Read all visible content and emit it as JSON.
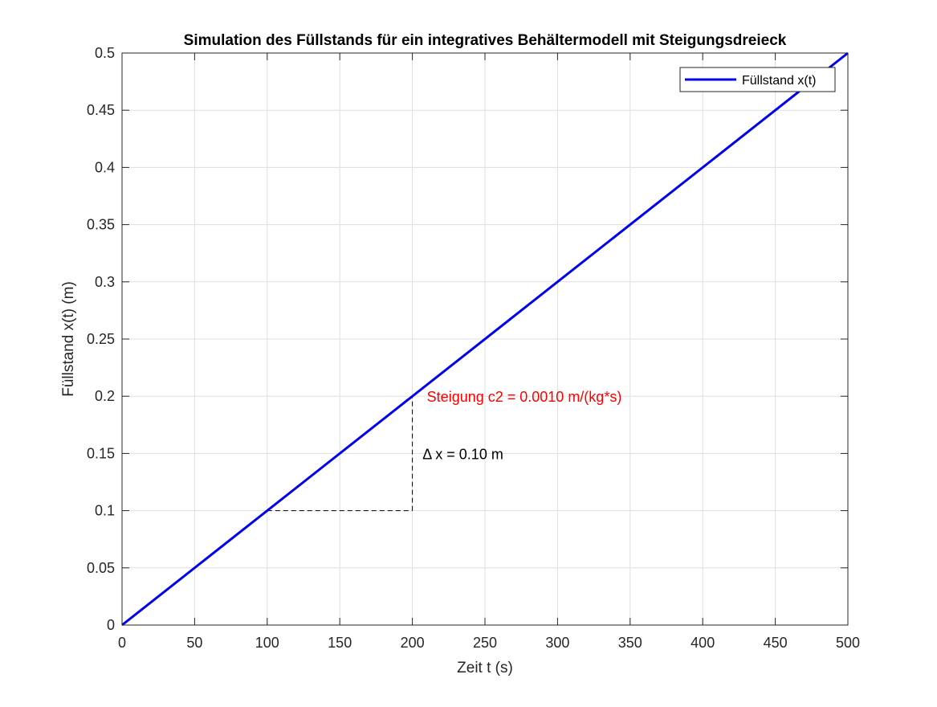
{
  "chart_data": {
    "type": "line",
    "title": "Simulation des Füllstands für ein integratives Behältermodell mit Steigungsdreieck",
    "xlabel": "Zeit t (s)",
    "ylabel": "Füllstand x(t) (m)",
    "xlim": [
      0,
      500
    ],
    "ylim": [
      0,
      0.5
    ],
    "xticks": [
      0,
      50,
      100,
      150,
      200,
      250,
      300,
      350,
      400,
      450,
      500
    ],
    "xtick_labels": [
      "0",
      "50",
      "100",
      "150",
      "200",
      "250",
      "300",
      "350",
      "400",
      "450",
      "500"
    ],
    "yticks": [
      0,
      0.05,
      0.1,
      0.15,
      0.2,
      0.25,
      0.3,
      0.35,
      0.4,
      0.45,
      0.5
    ],
    "ytick_labels": [
      "0",
      "0.05",
      "0.1",
      "0.15",
      "0.2",
      "0.25",
      "0.3",
      "0.35",
      "0.4",
      "0.45",
      "0.5"
    ],
    "grid": true,
    "legend_position": "top-right",
    "series": [
      {
        "name": "Füllstand x(t)",
        "color": "#0000ee",
        "x": [
          0,
          500
        ],
        "y": [
          0,
          0.5
        ]
      }
    ],
    "slope_triangle": {
      "color": "#000000",
      "style": "dashed",
      "points": [
        [
          100,
          0.1
        ],
        [
          200,
          0.1
        ],
        [
          200,
          0.2
        ]
      ]
    },
    "annotations": [
      {
        "text": "Steigung c2 = 0.0010 m/(kg*s)",
        "x": 210,
        "y": 0.2,
        "color": "#ff0000"
      },
      {
        "text": "Δ x = 0.10 m",
        "x": 207,
        "y": 0.15,
        "color": "#000000"
      }
    ]
  }
}
